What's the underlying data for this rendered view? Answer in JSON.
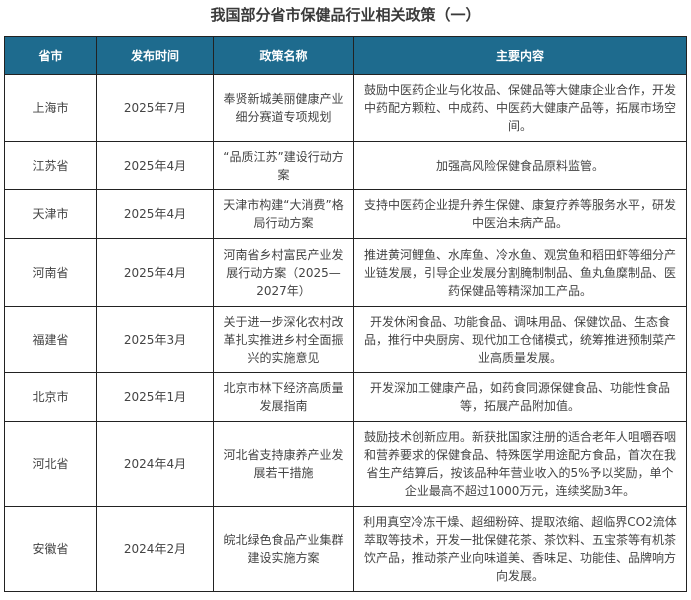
{
  "title": "我国部分省市保健品行业相关政策（一）",
  "colors": {
    "header_bg": "#1e6b8e",
    "header_text": "#ffffff",
    "body_text": "#444444"
  },
  "columns": [
    "省市",
    "发布时间",
    "政策名称",
    "主要内容"
  ],
  "rows": [
    {
      "region": "上海市",
      "date": "2025年7月",
      "policy": "奉贤新城美丽健康产业细分赛道专项规划",
      "content": "鼓励中医药企业与化妆品、保健品等大健康企业合作，开发中药配方颗粒、中成药、中医药大健康产品等，拓展市场空间。"
    },
    {
      "region": "江苏省",
      "date": "2025年4月",
      "policy": "“品质江苏”建设行动方案",
      "content": "加强高风险保健食品原料监管。"
    },
    {
      "region": "天津市",
      "date": "2025年4月",
      "policy": "天津市构建“大消费”格局行动方案",
      "content": "支持中医药企业提升养生保健、康复疗养等服务水平，研发中医治未病产品。"
    },
    {
      "region": "河南省",
      "date": "2025年4月",
      "policy": "河南省乡村富民产业发展行动方案（2025—2027年）",
      "content": "推进黄河鲤鱼、水库鱼、冷水鱼、观赏鱼和稻田虾等细分产业链发展，引导企业发展分割腌制制品、鱼丸鱼糜制品、医药保健品等精深加工产品。"
    },
    {
      "region": "福建省",
      "date": "2025年3月",
      "policy": "关于进一步深化农村改革扎实推进乡村全面振兴的实施意见",
      "content": "开发休闲食品、功能食品、调味用品、保健饮品、生态食品，推行中央厨房、现代加工仓储模式，统筹推进预制菜产业高质量发展。"
    },
    {
      "region": "北京市",
      "date": "2025年1月",
      "policy": "北京市林下经济高质量发展指南",
      "content": "开发深加工健康产品，如药食同源保健食品、功能性食品等，拓展产品附加值。"
    },
    {
      "region": "河北省",
      "date": "2024年4月",
      "policy": "河北省支持康养产业发展若干措施",
      "content": "鼓励技术创新应用。新获批国家注册的适合老年人咀嚼吞咽和营养要求的保健食品、特殊医学用途配方食品，首次在我省生产结算后，按该品种年营业收入的5%予以奖励，单个企业最高不超过1000万元，连续奖励3年。"
    },
    {
      "region": "安徽省",
      "date": "2024年2月",
      "policy": "皖北绿色食品产业集群建设实施方案",
      "content": "利用真空冷冻干燥、超细粉碎、提取浓缩、超临界CO2流体萃取等技术，开发一批保健花茶、茶饮料、五宝茶等有机茶饮产品，推动茶产业向味道美、香味足、功能佳、品牌响方向发展。"
    }
  ]
}
